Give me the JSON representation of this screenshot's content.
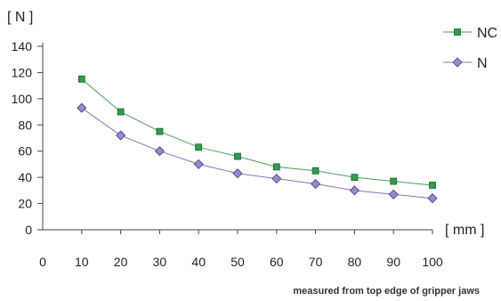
{
  "chart_data": {
    "type": "line",
    "ylabel": "[ N ]",
    "xlabel": "[ mm ]",
    "note": "measured from top edge of gripper jaws",
    "xlim": [
      0,
      100
    ],
    "ylim": [
      0,
      140
    ],
    "x_ticks": [
      "0",
      "10",
      "20",
      "30",
      "40",
      "50",
      "60",
      "70",
      "80",
      "90",
      "100"
    ],
    "y_ticks": [
      "0",
      "20",
      "40",
      "60",
      "80",
      "100",
      "120",
      "140"
    ],
    "grid": false,
    "legend_position": "top-right",
    "x": [
      10,
      20,
      30,
      40,
      50,
      60,
      70,
      80,
      90,
      100
    ],
    "series": [
      {
        "name": "NC",
        "values": [
          115,
          90,
          75,
          63,
          56,
          48,
          45,
          40,
          37,
          34
        ],
        "line_color": "#4aa05a",
        "marker": "square",
        "marker_color": "#2e9e4e"
      },
      {
        "name": "N",
        "values": [
          93,
          72,
          60,
          50,
          43,
          39,
          35,
          30,
          27,
          24
        ],
        "line_color": "#8a72c0",
        "marker": "diamond",
        "marker_color": "#9c88cc"
      }
    ]
  }
}
